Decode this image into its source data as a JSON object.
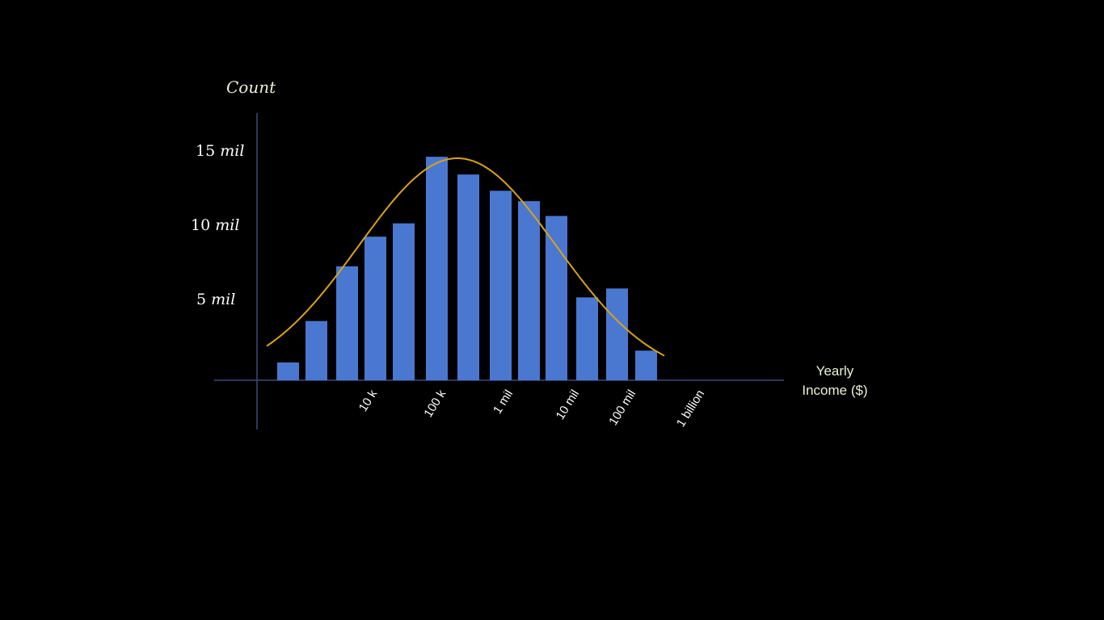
{
  "chart_data": {
    "type": "bar",
    "title": "",
    "ylabel": "Count",
    "xlabel_lines": [
      "Yearly",
      "Income ($)"
    ],
    "ylim": [
      0,
      15.5
    ],
    "y_unit": "mil",
    "y_ticks": [
      {
        "value": 5,
        "num": "5",
        "unit": "mil"
      },
      {
        "value": 10,
        "num": "10",
        "unit": "mil"
      },
      {
        "value": 15,
        "num": "15",
        "unit": "mil"
      }
    ],
    "x_tick_labels": [
      "10 k",
      "100 k",
      "1 mil",
      "10 mil",
      "100 mil",
      "1 billion"
    ],
    "values": [
      1.2,
      4.0,
      7.7,
      9.7,
      10.6,
      15.1,
      13.9,
      12.8,
      12.1,
      11.1,
      5.6,
      6.2,
      2.0
    ],
    "bar_color": "#4a78d1",
    "curve_color": "#d9a21b",
    "axis_color": "#3c4a78",
    "fit_curve": {
      "type": "normal",
      "peak": 15.0,
      "label": ""
    },
    "grid": false,
    "legend": "none"
  }
}
